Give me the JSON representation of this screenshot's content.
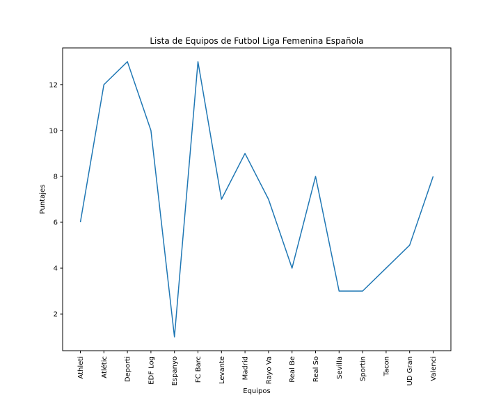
{
  "chart_data": {
    "type": "line",
    "title": "Lista de Equipos de Futbol Liga Femenina Española",
    "xlabel": "Equipos",
    "ylabel": "Puntajes",
    "categories": [
      "Athleti",
      "Atlétic",
      "Deporti",
      "EDF Log",
      "Espanyo",
      "FC Barc",
      "Levante",
      "Madrid",
      "Rayo Va",
      "Real Be",
      "Real So",
      "Sevilla",
      "Sportin",
      "Tacon",
      "UD Gran",
      "Valenci"
    ],
    "values": [
      6,
      12,
      13,
      10,
      1,
      13,
      7,
      9,
      7,
      4,
      8,
      3,
      3,
      4,
      5,
      8
    ],
    "yticks": [
      2,
      4,
      6,
      8,
      10,
      12
    ],
    "ylim": [
      0.4,
      13.6
    ],
    "grid": false,
    "line_color": "#1f77b4"
  }
}
